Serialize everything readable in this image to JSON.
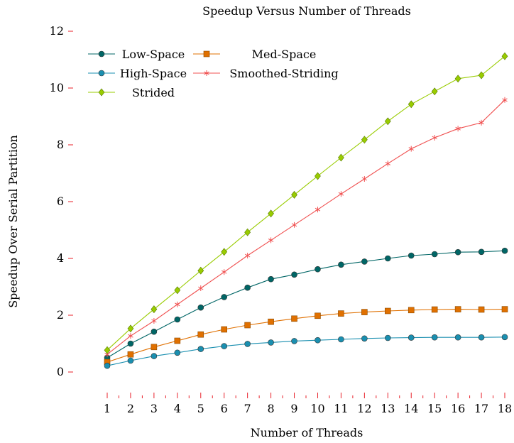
{
  "chart_data": {
    "type": "line",
    "title": "Speedup Versus Number of Threads",
    "xlabel": "Number of Threads",
    "ylabel": "Speedup Over Serial Partition",
    "x": [
      1,
      2,
      3,
      4,
      5,
      6,
      7,
      8,
      9,
      10,
      11,
      12,
      13,
      14,
      15,
      16,
      17,
      18
    ],
    "xlim": [
      1,
      18
    ],
    "ylim": [
      0,
      12
    ],
    "yticks": [
      0,
      2,
      4,
      6,
      8,
      10,
      12
    ],
    "grid": false,
    "legend_position": "top-left",
    "series": [
      {
        "name": "Low-Space",
        "color": "#006666",
        "marker": "circle",
        "values": [
          0.5,
          1.0,
          1.42,
          1.85,
          2.27,
          2.64,
          2.97,
          3.27,
          3.43,
          3.62,
          3.78,
          3.89,
          4.0,
          4.1,
          4.15,
          4.22,
          4.23,
          4.27
        ]
      },
      {
        "name": "Med-Space",
        "color": "#e07000",
        "marker": "square",
        "values": [
          0.35,
          0.62,
          0.88,
          1.1,
          1.32,
          1.5,
          1.65,
          1.77,
          1.88,
          1.98,
          2.06,
          2.11,
          2.15,
          2.18,
          2.2,
          2.21,
          2.2,
          2.21
        ]
      },
      {
        "name": "High-Space",
        "color": "#1a8fb0",
        "marker": "circle",
        "values": [
          0.22,
          0.4,
          0.56,
          0.68,
          0.81,
          0.91,
          0.99,
          1.04,
          1.09,
          1.12,
          1.15,
          1.18,
          1.2,
          1.21,
          1.22,
          1.22,
          1.22,
          1.23
        ]
      },
      {
        "name": "Smoothed-Striding",
        "color": "#f05050",
        "marker": "star",
        "values": [
          0.62,
          1.27,
          1.8,
          2.38,
          2.95,
          3.52,
          4.1,
          4.64,
          5.18,
          5.72,
          6.27,
          6.8,
          7.34,
          7.86,
          8.25,
          8.57,
          8.78,
          9.58
        ]
      },
      {
        "name": "Strided",
        "color": "#99cc00",
        "marker": "diamond",
        "values": [
          0.77,
          1.53,
          2.21,
          2.88,
          3.57,
          4.23,
          4.92,
          5.58,
          6.24,
          6.9,
          7.55,
          8.18,
          8.83,
          9.43,
          9.88,
          10.33,
          10.45,
          11.12
        ]
      }
    ]
  }
}
